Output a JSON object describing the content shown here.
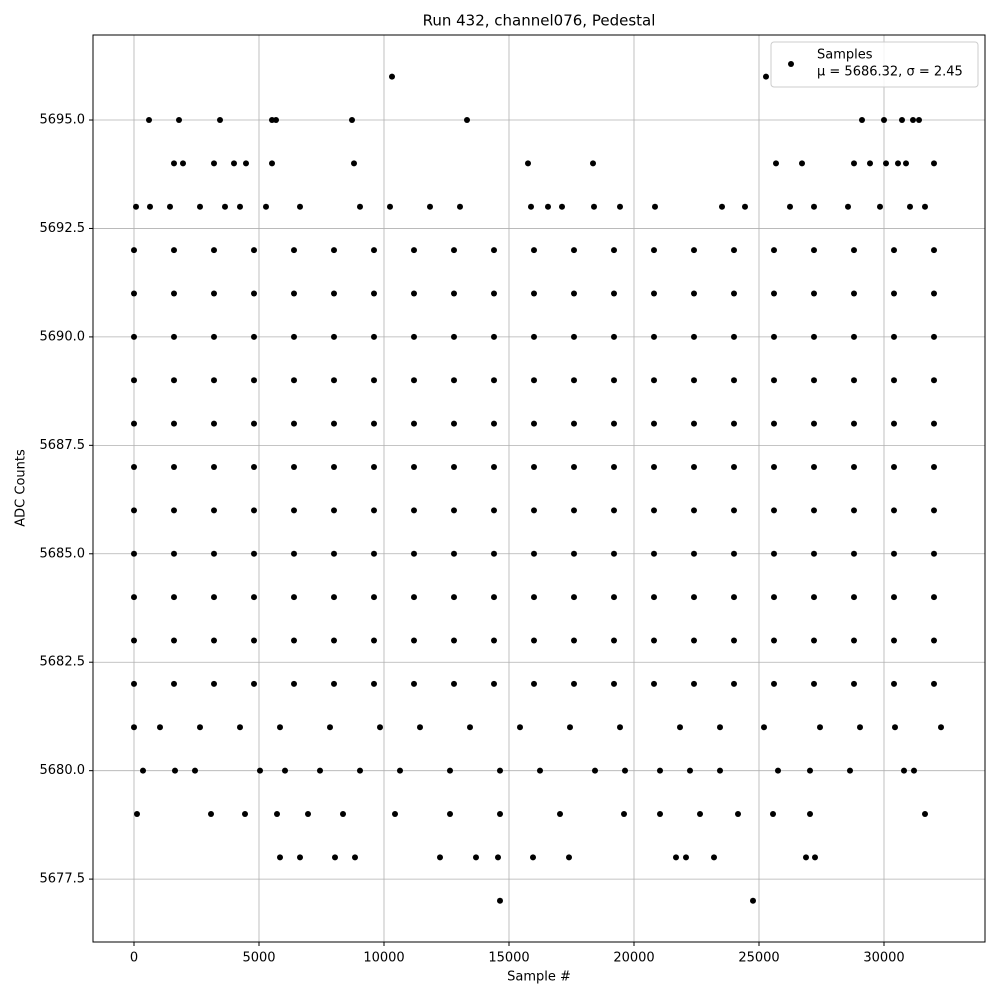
{
  "chart_data": {
    "type": "scatter",
    "title": "Run 432, channel076, Pedestal",
    "xlabel": "Sample #",
    "ylabel": "ADC Counts",
    "xlim": [
      -1640,
      34040
    ],
    "ylim": [
      5676.05,
      5696.96
    ],
    "xticks": [
      0,
      5000,
      10000,
      15000,
      20000,
      25000,
      30000
    ],
    "yticks": [
      5677.5,
      {
        "value": 5680,
        "label": "5680.0"
      },
      5682.5,
      {
        "value": 5685,
        "label": "5685.0"
      },
      5687.5,
      {
        "value": 5690,
        "label": "5690.0"
      },
      5692.5,
      {
        "value": 5695,
        "label": "5695.0"
      }
    ],
    "grid": true,
    "legend": "upper right",
    "legend_note": "μ = 5686.32, σ = 2.45",
    "series": [
      {
        "name": "Samples",
        "color": "#000000",
        "x": [
          0,
          1600,
          3200,
          4800,
          6400,
          8000,
          9600,
          11200,
          12800,
          14400,
          16000,
          17600,
          19200,
          20800,
          22400,
          24000,
          25600,
          27200,
          28800,
          30400,
          32000,
          0,
          1600,
          3200,
          4800,
          6400,
          8000,
          9600,
          11200,
          12800,
          14400,
          16000,
          17600,
          19200,
          20800,
          22400,
          24000,
          25600,
          27200,
          28800,
          30400,
          32000,
          0,
          1600,
          3200,
          4800,
          6400,
          8000,
          9600,
          11200,
          12800,
          14400,
          16000,
          17600,
          19200,
          20800,
          22400,
          24000,
          25600,
          27200,
          28800,
          30400,
          32000,
          0,
          1600,
          3200,
          4800,
          6400,
          8000,
          9600,
          11200,
          12800,
          14400,
          16000,
          17600,
          19200,
          20800,
          22400,
          24000,
          25600,
          27200,
          28800,
          30400,
          32000,
          0,
          1600,
          3200,
          4800,
          6400,
          8000,
          9600,
          11200,
          12800,
          14400,
          16000,
          17600,
          19200,
          20800,
          22400,
          24000,
          25600,
          27200,
          28800,
          30400,
          32000,
          0,
          1600,
          3200,
          4800,
          6400,
          8000,
          9600,
          11200,
          12800,
          14400,
          16000,
          17600,
          19200,
          20800,
          22400,
          24000,
          25600,
          27200,
          28800,
          30400,
          32000,
          0,
          1600,
          3200,
          4800,
          6400,
          8000,
          9600,
          11200,
          12800,
          14400,
          16000,
          17600,
          19200,
          20800,
          22400,
          24000,
          25600,
          27200,
          28800,
          30400,
          32000,
          0,
          1600,
          3200,
          4800,
          6400,
          8000,
          9600,
          11200,
          12800,
          14400,
          16000,
          17600,
          19200,
          20800,
          22400,
          24000,
          25600,
          27200,
          28800,
          30400,
          32000,
          0,
          1600,
          3200,
          4800,
          6400,
          8000,
          9600,
          11200,
          12800,
          14400,
          16000,
          17600,
          19200,
          20800,
          22400,
          24000,
          25600,
          27200,
          28800,
          30400,
          32000,
          0,
          1600,
          3200,
          4800,
          6400,
          8000,
          9600,
          11200,
          12800,
          14400,
          16000,
          17600,
          19200,
          20800,
          22400,
          24000,
          25600,
          27200,
          28800,
          30400,
          32000,
          0,
          1600,
          3200,
          4800,
          6400,
          8000,
          9600,
          11200,
          12800,
          14400,
          16000,
          17600,
          19200,
          20800,
          22400,
          24000,
          25600,
          27200,
          28800,
          30400,
          32000,
          10320,
          25280,
          600,
          1800,
          3440,
          5520,
          5680,
          8720,
          13320,
          29120,
          30000,
          30720,
          31160,
          31400,
          1600,
          1960,
          3200,
          4000,
          4480,
          5520,
          8800,
          15760,
          18360,
          25680,
          26720,
          28800,
          29440,
          30080,
          30560,
          30880,
          32000,
          80,
          640,
          1440,
          2640,
          3640,
          4240,
          5280,
          6640,
          9040,
          10240,
          11840,
          13040,
          15880,
          16560,
          17120,
          18400,
          19440,
          20840,
          23520,
          24440,
          26240,
          27200,
          28560,
          29840,
          31040,
          31640,
          360,
          1640,
          2440,
          5040,
          6040,
          7440,
          9040,
          10640,
          12640,
          14640,
          16240,
          18440,
          19640,
          21040,
          22240,
          23440,
          25760,
          27040,
          28640,
          30800,
          31200,
          120,
          3080,
          4440,
          5720,
          6960,
          8360,
          10440,
          12640,
          14640,
          17040,
          19600,
          21040,
          22640,
          24160,
          25560,
          27040,
          31640,
          5840,
          6640,
          8040,
          8840,
          12240,
          13680,
          14560,
          15960,
          17400,
          21680,
          22080,
          23200,
          26880,
          27240,
          14640,
          24760,
          0,
          1040,
          2640,
          4240,
          5840,
          7840,
          9840,
          11440,
          13440,
          15440,
          17440,
          19440,
          21840,
          23440,
          25200,
          27440,
          29040,
          30440,
          32280
        ],
        "values": [
          5682,
          5682,
          5682,
          5682,
          5682,
          5682,
          5682,
          5682,
          5682,
          5682,
          5682,
          5682,
          5682,
          5682,
          5682,
          5682,
          5682,
          5682,
          5682,
          5682,
          5682,
          5683,
          5683,
          5683,
          5683,
          5683,
          5683,
          5683,
          5683,
          5683,
          5683,
          5683,
          5683,
          5683,
          5683,
          5683,
          5683,
          5683,
          5683,
          5683,
          5683,
          5683,
          5684,
          5684,
          5684,
          5684,
          5684,
          5684,
          5684,
          5684,
          5684,
          5684,
          5684,
          5684,
          5684,
          5684,
          5684,
          5684,
          5684,
          5684,
          5684,
          5684,
          5684,
          5685,
          5685,
          5685,
          5685,
          5685,
          5685,
          5685,
          5685,
          5685,
          5685,
          5685,
          5685,
          5685,
          5685,
          5685,
          5685,
          5685,
          5685,
          5685,
          5685,
          5685,
          5686,
          5686,
          5686,
          5686,
          5686,
          5686,
          5686,
          5686,
          5686,
          5686,
          5686,
          5686,
          5686,
          5686,
          5686,
          5686,
          5686,
          5686,
          5686,
          5686,
          5686,
          5687,
          5687,
          5687,
          5687,
          5687,
          5687,
          5687,
          5687,
          5687,
          5687,
          5687,
          5687,
          5687,
          5687,
          5687,
          5687,
          5687,
          5687,
          5687,
          5687,
          5687,
          5688,
          5688,
          5688,
          5688,
          5688,
          5688,
          5688,
          5688,
          5688,
          5688,
          5688,
          5688,
          5688,
          5688,
          5688,
          5688,
          5688,
          5688,
          5688,
          5688,
          5688,
          5689,
          5689,
          5689,
          5689,
          5689,
          5689,
          5689,
          5689,
          5689,
          5689,
          5689,
          5689,
          5689,
          5689,
          5689,
          5689,
          5689,
          5689,
          5689,
          5689,
          5689,
          5690,
          5690,
          5690,
          5690,
          5690,
          5690,
          5690,
          5690,
          5690,
          5690,
          5690,
          5690,
          5690,
          5690,
          5690,
          5690,
          5690,
          5690,
          5690,
          5690,
          5690,
          5691,
          5691,
          5691,
          5691,
          5691,
          5691,
          5691,
          5691,
          5691,
          5691,
          5691,
          5691,
          5691,
          5691,
          5691,
          5691,
          5691,
          5691,
          5691,
          5691,
          5691,
          5692,
          5692,
          5692,
          5692,
          5692,
          5692,
          5692,
          5692,
          5692,
          5692,
          5692,
          5692,
          5692,
          5692,
          5692,
          5692,
          5692,
          5692,
          5692,
          5692,
          5692,
          5696,
          5696,
          5695,
          5695,
          5695,
          5695,
          5695,
          5695,
          5695,
          5695,
          5695,
          5695,
          5695,
          5695,
          5694,
          5694,
          5694,
          5694,
          5694,
          5694,
          5694,
          5694,
          5694,
          5694,
          5694,
          5694,
          5694,
          5694,
          5694,
          5694,
          5694,
          5693,
          5693,
          5693,
          5693,
          5693,
          5693,
          5693,
          5693,
          5693,
          5693,
          5693,
          5693,
          5693,
          5693,
          5693,
          5693,
          5693,
          5693,
          5693,
          5693,
          5693,
          5693,
          5693,
          5693,
          5693,
          5693,
          5680,
          5680,
          5680,
          5680,
          5680,
          5680,
          5680,
          5680,
          5680,
          5680,
          5680,
          5680,
          5680,
          5680,
          5680,
          5680,
          5680,
          5680,
          5680,
          5680,
          5680,
          5679,
          5679,
          5679,
          5679,
          5679,
          5679,
          5679,
          5679,
          5679,
          5679,
          5679,
          5679,
          5679,
          5679,
          5679,
          5679,
          5679,
          5678,
          5678,
          5678,
          5678,
          5678,
          5678,
          5678,
          5678,
          5678,
          5678,
          5678,
          5678,
          5678,
          5678,
          5677,
          5677,
          5681,
          5681,
          5681,
          5681,
          5681,
          5681,
          5681,
          5681,
          5681,
          5681,
          5681,
          5681,
          5681,
          5681,
          5681,
          5681,
          5681,
          5681,
          5681
        ]
      }
    ]
  }
}
